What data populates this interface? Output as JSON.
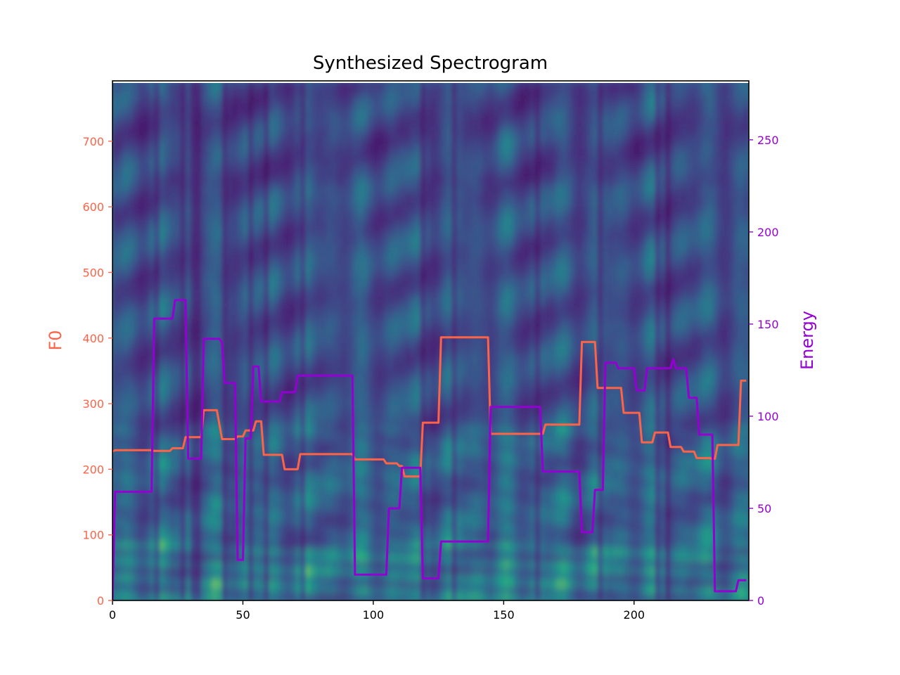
{
  "chart_data": {
    "type": "line",
    "title": "Synthesized Spectrogram",
    "background": "heatmap",
    "colormap": "viridis",
    "xlim": [
      0,
      244
    ],
    "x_ticks": [
      0,
      50,
      100,
      150,
      200
    ],
    "y_left": {
      "label": "F0",
      "color": "#ff6347",
      "ylim": [
        0,
        792
      ],
      "ticks": [
        0,
        100,
        200,
        300,
        400,
        500,
        600,
        700
      ]
    },
    "y_right": {
      "label": "Energy",
      "color": "#9400d3",
      "ylim": [
        0,
        282
      ],
      "ticks": [
        0,
        50,
        100,
        150,
        200,
        250
      ]
    },
    "series": [
      {
        "name": "F0",
        "axis": "left",
        "color": "#ff6347",
        "points": [
          [
            0,
            227
          ],
          [
            1,
            229
          ],
          [
            15,
            229
          ],
          [
            16,
            228
          ],
          [
            22,
            228
          ],
          [
            23,
            232
          ],
          [
            27,
            232
          ],
          [
            28,
            249
          ],
          [
            34,
            249
          ],
          [
            35,
            290
          ],
          [
            40,
            290
          ],
          [
            42,
            246
          ],
          [
            47,
            246
          ],
          [
            48,
            250
          ],
          [
            50,
            250
          ],
          [
            51,
            259
          ],
          [
            54,
            259
          ],
          [
            55,
            273
          ],
          [
            57,
            273
          ],
          [
            58,
            222
          ],
          [
            65,
            222
          ],
          [
            66,
            200
          ],
          [
            71,
            200
          ],
          [
            72,
            223
          ],
          [
            92,
            223
          ],
          [
            93,
            215
          ],
          [
            104,
            215
          ],
          [
            105,
            209
          ],
          [
            109,
            209
          ],
          [
            110,
            205
          ],
          [
            111,
            205
          ],
          [
            112,
            189
          ],
          [
            118,
            189
          ],
          [
            119,
            271
          ],
          [
            125,
            271
          ],
          [
            126,
            401
          ],
          [
            144,
            401
          ],
          [
            145,
            254
          ],
          [
            165,
            254
          ],
          [
            166,
            268
          ],
          [
            179,
            268
          ],
          [
            180,
            394
          ],
          [
            185,
            394
          ],
          [
            186,
            324
          ],
          [
            195,
            324
          ],
          [
            196,
            286
          ],
          [
            202,
            286
          ],
          [
            203,
            241
          ],
          [
            207,
            241
          ],
          [
            208,
            256
          ],
          [
            213,
            256
          ],
          [
            214,
            234
          ],
          [
            218,
            234
          ],
          [
            219,
            227
          ],
          [
            223,
            227
          ],
          [
            224,
            217
          ],
          [
            229,
            217
          ],
          [
            230,
            216
          ],
          [
            231,
            216
          ],
          [
            232,
            237
          ],
          [
            240,
            237
          ],
          [
            241,
            335
          ],
          [
            243,
            335
          ]
        ]
      },
      {
        "name": "Energy",
        "axis": "right",
        "color": "#9400d3",
        "points": [
          [
            0,
            0
          ],
          [
            1,
            59
          ],
          [
            15,
            59
          ],
          [
            16,
            153
          ],
          [
            23,
            153
          ],
          [
            24,
            163
          ],
          [
            28,
            163
          ],
          [
            29,
            77
          ],
          [
            34,
            77
          ],
          [
            35,
            142
          ],
          [
            41,
            142
          ],
          [
            42,
            140
          ],
          [
            43,
            118
          ],
          [
            47,
            118
          ],
          [
            48,
            22
          ],
          [
            50,
            22
          ],
          [
            51,
            88
          ],
          [
            53,
            88
          ],
          [
            54,
            127
          ],
          [
            56,
            127
          ],
          [
            57,
            108
          ],
          [
            64,
            108
          ],
          [
            65,
            113
          ],
          [
            70,
            113
          ],
          [
            71,
            122
          ],
          [
            92,
            122
          ],
          [
            93,
            14
          ],
          [
            105,
            14
          ],
          [
            106,
            50
          ],
          [
            110,
            50
          ],
          [
            111,
            72
          ],
          [
            118,
            72
          ],
          [
            119,
            12
          ],
          [
            125,
            12
          ],
          [
            126,
            32
          ],
          [
            144,
            32
          ],
          [
            145,
            105
          ],
          [
            164,
            105
          ],
          [
            165,
            70
          ],
          [
            179,
            70
          ],
          [
            180,
            37
          ],
          [
            184,
            37
          ],
          [
            185,
            60
          ],
          [
            188,
            60
          ],
          [
            189,
            129
          ],
          [
            193,
            129
          ],
          [
            194,
            126
          ],
          [
            200,
            126
          ],
          [
            201,
            114
          ],
          [
            204,
            114
          ],
          [
            205,
            126
          ],
          [
            214,
            126
          ],
          [
            215,
            131
          ],
          [
            216,
            126
          ],
          [
            220,
            126
          ],
          [
            221,
            110
          ],
          [
            224,
            110
          ],
          [
            225,
            90
          ],
          [
            230,
            90
          ],
          [
            231,
            5
          ],
          [
            239,
            5
          ],
          [
            240,
            11
          ],
          [
            243,
            11
          ]
        ]
      }
    ]
  }
}
